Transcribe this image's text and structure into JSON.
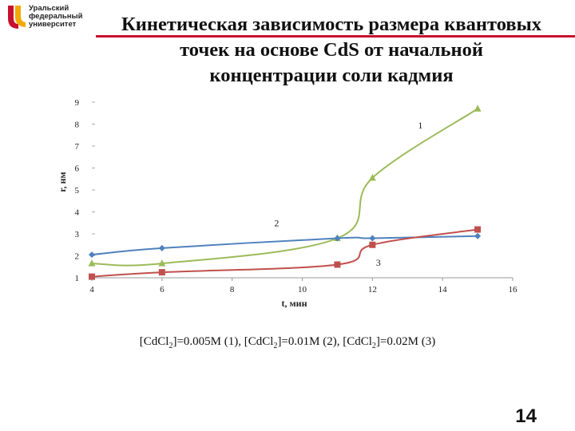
{
  "logo": {
    "line1": "Уральский",
    "line2": "федеральный",
    "line3": "университет",
    "color_primary": "#c8102e"
  },
  "title": {
    "line1": "Кинетическая зависимость размера квантовых",
    "line2": "точек на основе CdS от начальной",
    "line3": "концентрации соли кадмия"
  },
  "caption": {
    "p1": "[CdCl",
    "s1": "2",
    "p2": "]=0.005M (1), [CdCl",
    "s2": "2",
    "p3": "]=0.01M (2), [CdCl",
    "s3": "2",
    "p4": "]=0.02M (3)"
  },
  "page_number": "14",
  "chart_data": {
    "type": "line",
    "xlabel": "t, мин",
    "ylabel": "r, нм",
    "xlim": [
      4,
      16
    ],
    "ylim": [
      1,
      9
    ],
    "x_ticks": [
      "4",
      "6",
      "8",
      "10",
      "12",
      "14",
      "16"
    ],
    "y_ticks": [
      "1",
      "2",
      "3",
      "4",
      "5",
      "6",
      "7",
      "8",
      "9"
    ],
    "grid": false,
    "series": [
      {
        "name": "1",
        "color": "#9bbb59",
        "marker": "triangle",
        "points": [
          [
            4,
            1.65
          ],
          [
            6,
            1.65
          ],
          [
            11,
            2.8
          ],
          [
            12,
            5.55
          ],
          [
            15,
            8.7
          ]
        ],
        "label_pos": [
          13.3,
          7.8
        ]
      },
      {
        "name": "2",
        "color": "#4f81bd",
        "marker": "diamond",
        "points": [
          [
            4,
            2.05
          ],
          [
            6,
            2.35
          ],
          [
            11,
            2.8
          ],
          [
            12,
            2.8
          ],
          [
            15,
            2.9
          ]
        ],
        "label_pos": [
          9.2,
          3.35
        ]
      },
      {
        "name": "3",
        "color": "#c0504d",
        "marker": "square",
        "points": [
          [
            4,
            1.05
          ],
          [
            6,
            1.25
          ],
          [
            11,
            1.6
          ],
          [
            12,
            2.5
          ],
          [
            15,
            3.2
          ]
        ],
        "label_pos": [
          12.1,
          1.55
        ]
      }
    ]
  }
}
